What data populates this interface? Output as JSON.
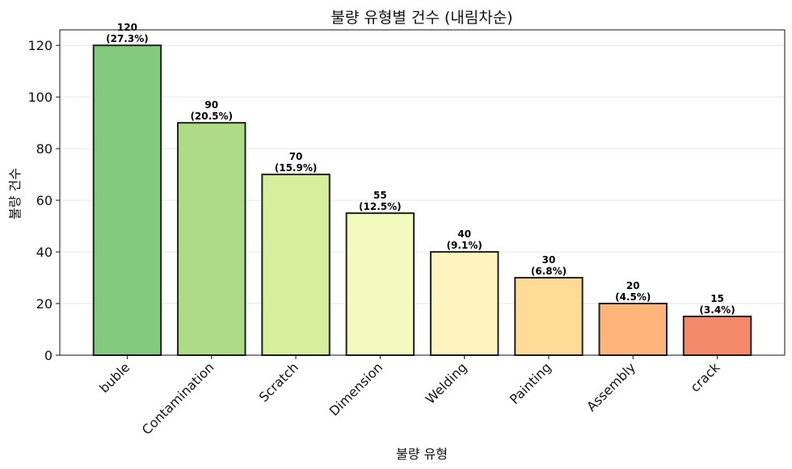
{
  "chart_data": {
    "type": "bar",
    "title": "불량 유형별 건수 (내림차순)",
    "xlabel": "불량 유형",
    "ylabel": "불량 건수",
    "categories": [
      "buble",
      "Contamination",
      "Scratch",
      "Dimension",
      "Welding",
      "Painting",
      "Assembly",
      "crack"
    ],
    "values": [
      120,
      90,
      70,
      55,
      40,
      30,
      20,
      15
    ],
    "value_labels": [
      "120",
      "90",
      "70",
      "55",
      "40",
      "30",
      "20",
      "15"
    ],
    "percent_labels": [
      "(27.3%)",
      "(20.5%)",
      "(15.9%)",
      "(12.5%)",
      "(9.1%)",
      "(6.8%)",
      "(4.5%)",
      "(3.4%)"
    ],
    "colors": [
      "#84ca7e",
      "#aedb86",
      "#d7ef9c",
      "#f2fac0",
      "#fff3bf",
      "#ffdb97",
      "#feb47b",
      "#f5896a"
    ],
    "ylim": [
      0,
      126
    ],
    "yticks": [
      0,
      20,
      40,
      60,
      80,
      100,
      120
    ],
    "grid": "horizontal",
    "legend": "none"
  }
}
